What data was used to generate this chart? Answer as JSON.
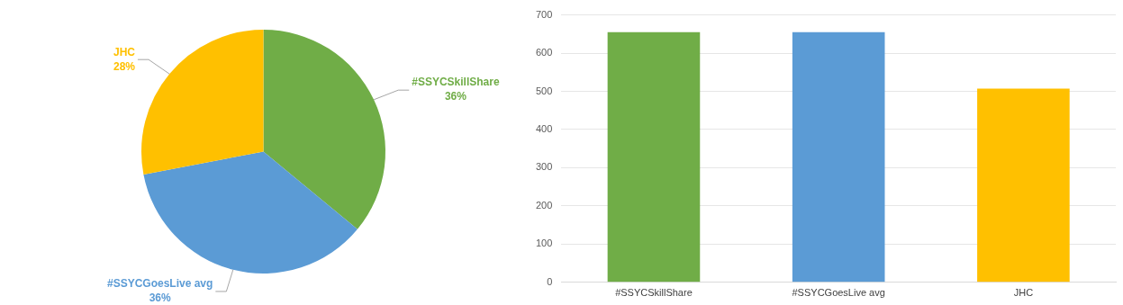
{
  "chart_data": [
    {
      "type": "pie",
      "categories": [
        "#SSYCSkillShare",
        "#SSYCGoesLive avg",
        "JHC"
      ],
      "values": [
        36,
        36,
        28
      ],
      "value_labels": [
        "36%",
        "36%",
        "28%"
      ],
      "colors": [
        "#70ad47",
        "#5b9bd5",
        "#ffc000"
      ],
      "legend": false
    },
    {
      "type": "bar",
      "categories": [
        "#SSYCSkillShare",
        "#SSYCGoesLive avg",
        "JHC"
      ],
      "values": [
        655,
        655,
        507
      ],
      "colors": [
        "#70ad47",
        "#5b9bd5",
        "#ffc000"
      ],
      "ylim": [
        0,
        700
      ],
      "yticks": [
        0,
        100,
        200,
        300,
        400,
        500,
        600,
        700
      ],
      "grid": "y",
      "legend": false
    }
  ]
}
